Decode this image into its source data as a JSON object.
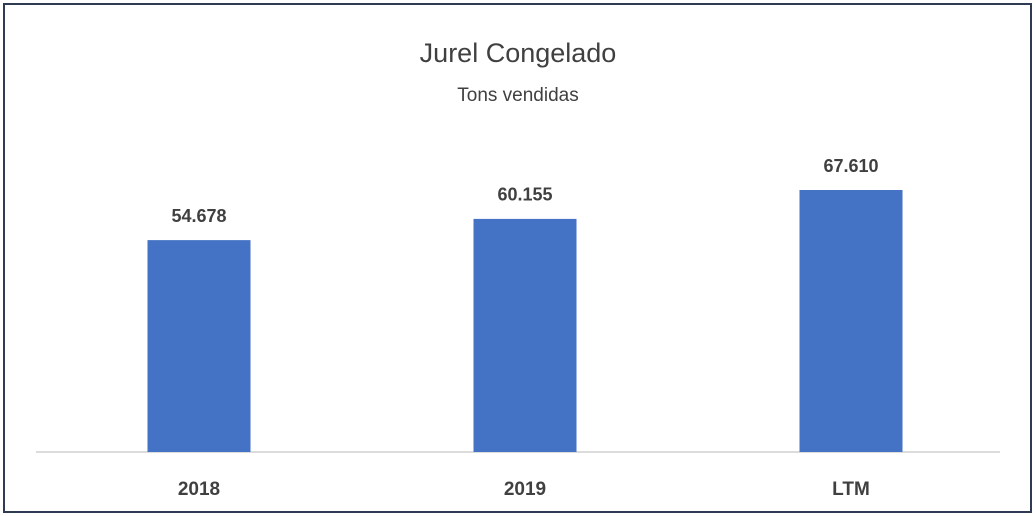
{
  "chart_data": {
    "type": "bar",
    "title": "Jurel Congelado",
    "subtitle": "Tons vendidas",
    "categories": [
      "2018",
      "2019",
      "LTM"
    ],
    "values": [
      54678,
      60155,
      67610
    ],
    "value_labels": [
      "54.678",
      "60.155",
      "67.610"
    ],
    "color": "#4472c4",
    "ylim": [
      0,
      80000
    ]
  }
}
